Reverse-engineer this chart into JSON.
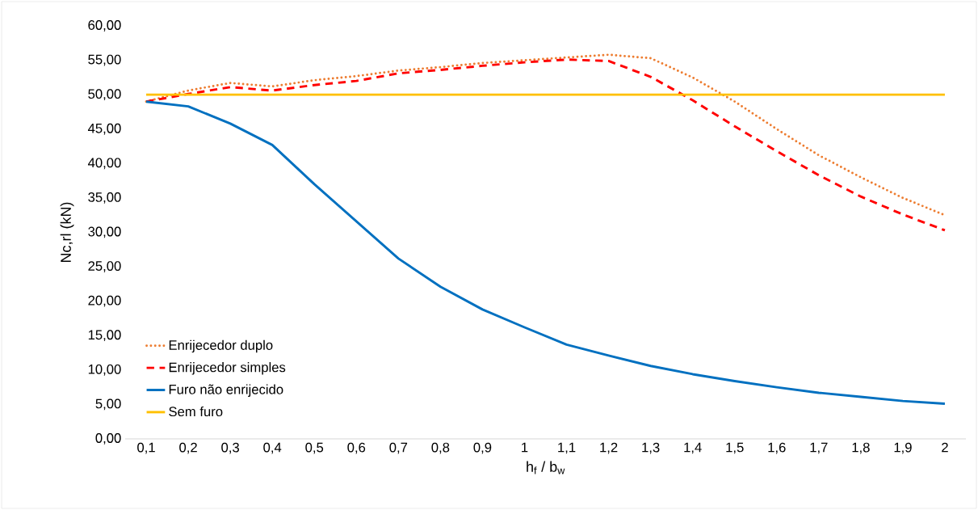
{
  "chart_data": {
    "type": "line",
    "xlabel": "h$_{f}$ / b$_{w}$",
    "ylabel": "Nc,rl (kN)",
    "categories": [
      "0,1",
      "0,2",
      "0,3",
      "0,4",
      "0,5",
      "0,6",
      "0,7",
      "0,8",
      "0,9",
      "1",
      "1,1",
      "1,2",
      "1,3",
      "1,4",
      "1,5",
      "1,6",
      "1,7",
      "1,8",
      "1,9",
      "2"
    ],
    "ylim": [
      0,
      60
    ],
    "yticks": [
      {
        "value": 0,
        "label": "0,00"
      },
      {
        "value": 5,
        "label": "5,00"
      },
      {
        "value": 10,
        "label": "10,00"
      },
      {
        "value": 15,
        "label": "15,00"
      },
      {
        "value": 20,
        "label": "20,00"
      },
      {
        "value": 25,
        "label": "25,00"
      },
      {
        "value": 30,
        "label": "30,00"
      },
      {
        "value": 35,
        "label": "35,00"
      },
      {
        "value": 40,
        "label": "40,00"
      },
      {
        "value": 45,
        "label": "45,00"
      },
      {
        "value": 50,
        "label": "50,00"
      },
      {
        "value": 55,
        "label": "55,00"
      },
      {
        "value": 60,
        "label": "60,00"
      }
    ],
    "legend": "bottom left",
    "grid": false,
    "series": [
      {
        "name": "Enrijecedor duplo",
        "color": "#ed7d31",
        "line_style": "dotted",
        "values": [
          49.0,
          50.6,
          51.7,
          51.2,
          52.1,
          52.7,
          53.5,
          54.0,
          54.6,
          55.0,
          55.4,
          55.8,
          55.3,
          52.5,
          49.0,
          45.0,
          41.2,
          38.0,
          35.0,
          32.5
        ]
      },
      {
        "name": "Enrijecedor simples",
        "color": "#ff0000",
        "line_style": "dashed",
        "values": [
          49.0,
          50.1,
          51.1,
          50.6,
          51.4,
          52.0,
          53.1,
          53.6,
          54.2,
          54.7,
          55.1,
          54.9,
          52.6,
          49.2,
          45.4,
          41.8,
          38.3,
          35.2,
          32.6,
          30.3
        ]
      },
      {
        "name": "Furo não enrijecido",
        "color": "#0070c0",
        "line_style": "solid",
        "values": [
          49.0,
          48.3,
          45.8,
          42.7,
          37.0,
          31.6,
          26.2,
          22.1,
          18.8,
          16.2,
          13.7,
          12.1,
          10.6,
          9.4,
          8.4,
          7.5,
          6.7,
          6.1,
          5.5,
          5.1
        ]
      },
      {
        "name": "Sem furo",
        "color": "#ffc000",
        "line_style": "solid",
        "values": [
          50,
          50,
          50,
          50,
          50,
          50,
          50,
          50,
          50,
          50,
          50,
          50,
          50,
          50,
          50,
          50,
          50,
          50,
          50,
          50
        ]
      }
    ]
  }
}
